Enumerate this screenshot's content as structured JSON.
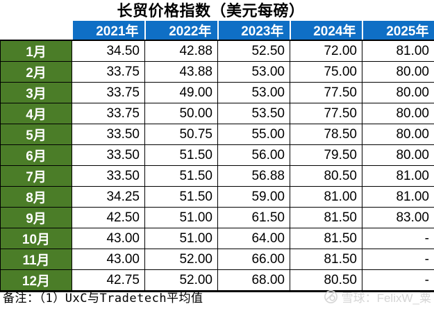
{
  "title": "长贸价格指数（美元每磅）",
  "footnote": "备注：（1）UxC与Tradetech平均值",
  "watermark": {
    "logo": "xueqiu-snowball-icon",
    "text": "雪球：FelixW_粟"
  },
  "colors": {
    "year_header_bg": "#0F6FC5",
    "month_header_bg": "#4B7D28",
    "header_text": "#FFFFFF",
    "body_text": "#000000",
    "border": "#000000",
    "watermark_text": "#D5D5D5"
  },
  "table": {
    "corner_label": "",
    "missing_value_display": "-"
  },
  "chart_data": {
    "type": "table",
    "title": "长贸价格指数（美元每磅）",
    "categories": [
      "1月",
      "2月",
      "3月",
      "4月",
      "5月",
      "6月",
      "7月",
      "8月",
      "9月",
      "10月",
      "11月",
      "12月"
    ],
    "series": [
      {
        "name": "2021年",
        "values": [
          34.5,
          33.75,
          33.75,
          33.75,
          33.5,
          33.5,
          33.5,
          34.25,
          42.5,
          43.0,
          43.0,
          42.75
        ]
      },
      {
        "name": "2022年",
        "values": [
          42.88,
          43.88,
          49.0,
          50.0,
          50.75,
          51.5,
          51.5,
          51.5,
          51.0,
          51.0,
          52.0,
          52.0
        ]
      },
      {
        "name": "2023年",
        "values": [
          52.5,
          53.0,
          53.0,
          53.5,
          55.0,
          56.0,
          56.88,
          59.0,
          61.5,
          64.0,
          66.0,
          68.0
        ]
      },
      {
        "name": "2024年",
        "values": [
          72.0,
          75.0,
          77.5,
          77.5,
          78.5,
          79.5,
          80.5,
          81.0,
          81.5,
          81.5,
          81.5,
          80.5
        ]
      },
      {
        "name": "2025年",
        "values": [
          81.0,
          80.0,
          80.0,
          80.0,
          80.0,
          80.0,
          81.0,
          81.0,
          83.0,
          null,
          null,
          null
        ]
      }
    ],
    "missing_value_display": "-",
    "footnote": "备注：（1）UxC与Tradetech平均值"
  }
}
